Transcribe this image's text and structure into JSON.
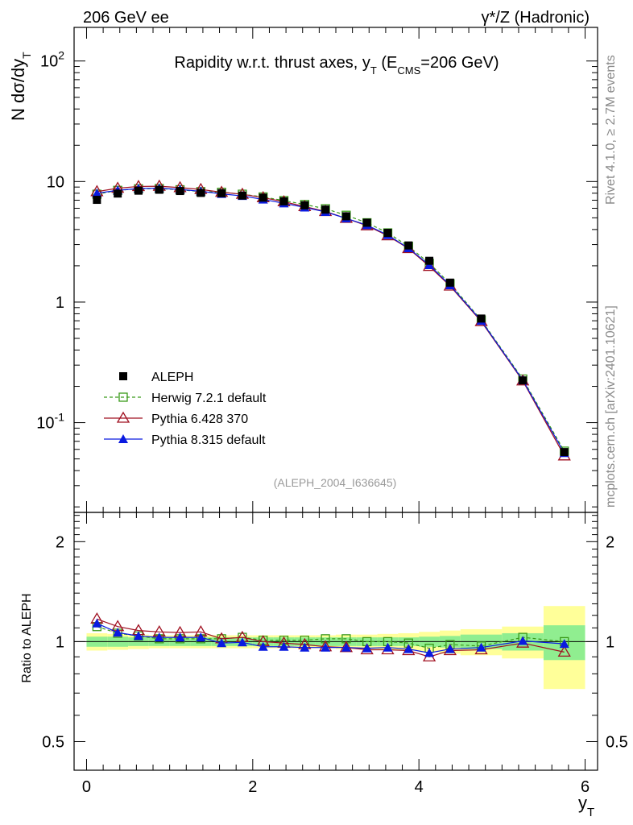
{
  "header": {
    "left_label": "206 GeV ee",
    "right_label": "γ*/Z (Hadronic)",
    "side_rivet": "Rivet 4.1.0, ≥ 2.7M events",
    "side_mcplots": "mcplots.cern.ch [arXiv:2401.10621]",
    "analysis_id": "(ALEPH_2004_I636645)"
  },
  "chart_data": [
    {
      "type": "line",
      "panel": "main",
      "yscale": "log",
      "title": "Rapidity w.r.t. thrust axes, y_T (E_CMS=206 GeV)",
      "ylabel": "N  dσ/dy_T",
      "xlim": [
        -0.15,
        6.15
      ],
      "ylim": [
        0.018,
        190
      ],
      "yticks": [
        {
          "v": 0.1,
          "label": "10^-1"
        },
        {
          "v": 1,
          "label": "1"
        },
        {
          "v": 10,
          "label": "10"
        },
        {
          "v": 100,
          "label": "10^2"
        }
      ],
      "x": [
        0.125,
        0.375,
        0.625,
        0.875,
        1.125,
        1.375,
        1.625,
        1.875,
        2.125,
        2.375,
        2.625,
        2.875,
        3.125,
        3.375,
        3.625,
        3.875,
        4.125,
        4.375,
        4.75,
        5.25,
        5.75
      ],
      "series": [
        {
          "name": "ALEPH",
          "style": "data",
          "color": "#000000",
          "values": [
            7.05,
            7.95,
            8.4,
            8.55,
            8.35,
            8.05,
            8.0,
            7.65,
            7.35,
            6.85,
            6.35,
            5.85,
            5.15,
            4.55,
            3.75,
            2.95,
            2.2,
            1.45,
            0.73,
            0.224,
            0.057
          ]
        },
        {
          "name": "Herwig 7.2.1 default",
          "style": "open-square-dashed",
          "color": "#3a9a1a",
          "values": [
            7.85,
            8.45,
            8.7,
            8.75,
            8.55,
            8.25,
            8.15,
            7.85,
            7.45,
            6.95,
            6.45,
            5.95,
            5.25,
            4.55,
            3.75,
            2.9,
            2.1,
            1.42,
            0.71,
            0.23,
            0.058
          ]
        },
        {
          "name": "Pythia 6.428 370",
          "style": "open-triangle",
          "color": "#a01020",
          "values": [
            8.25,
            8.8,
            9.1,
            9.15,
            8.9,
            8.6,
            8.15,
            7.85,
            7.35,
            6.8,
            6.2,
            5.65,
            4.95,
            4.3,
            3.55,
            2.78,
            1.98,
            1.36,
            0.69,
            0.222,
            0.053
          ]
        },
        {
          "name": "Pythia 8.315 default",
          "style": "filled-triangle",
          "color": "#0a1ae0",
          "values": [
            8.0,
            8.45,
            8.75,
            8.8,
            8.6,
            8.3,
            7.9,
            7.6,
            7.1,
            6.6,
            6.1,
            5.6,
            4.95,
            4.35,
            3.6,
            2.8,
            2.03,
            1.38,
            0.7,
            0.225,
            0.056
          ]
        }
      ]
    },
    {
      "type": "line",
      "panel": "ratio",
      "yscale": "log",
      "ylabel": "Ratio to ALEPH",
      "xlabel": "y_T",
      "xlim": [
        -0.15,
        6.15
      ],
      "ylim": [
        0.41,
        2.45
      ],
      "xticks": [
        0,
        2,
        4,
        6
      ],
      "yticks": [
        {
          "v": 0.5,
          "label": "0.5"
        },
        {
          "v": 1,
          "label": "1"
        },
        {
          "v": 2,
          "label": "2"
        }
      ],
      "bands": {
        "edges": [
          0.0,
          0.25,
          0.5,
          0.75,
          1.0,
          1.25,
          1.5,
          1.75,
          2.0,
          2.25,
          2.5,
          2.75,
          3.0,
          3.25,
          3.5,
          3.75,
          4.0,
          4.25,
          4.5,
          5.0,
          5.5,
          6.0
        ],
        "inner_half_width": [
          0.035,
          0.035,
          0.03,
          0.03,
          0.03,
          0.03,
          0.03,
          0.03,
          0.03,
          0.03,
          0.03,
          0.03,
          0.03,
          0.03,
          0.03,
          0.03,
          0.035,
          0.04,
          0.05,
          0.06,
          0.12
        ],
        "outer_half_width": [
          0.06,
          0.055,
          0.05,
          0.045,
          0.045,
          0.045,
          0.045,
          0.045,
          0.045,
          0.045,
          0.045,
          0.045,
          0.05,
          0.05,
          0.055,
          0.06,
          0.07,
          0.08,
          0.09,
          0.11,
          0.28
        ],
        "inner_color": "#90ee90",
        "outer_color": "#ffff99"
      },
      "x": [
        0.125,
        0.375,
        0.625,
        0.875,
        1.125,
        1.375,
        1.625,
        1.875,
        2.125,
        2.375,
        2.625,
        2.875,
        3.125,
        3.375,
        3.625,
        3.875,
        4.125,
        4.375,
        4.75,
        5.25,
        5.75
      ],
      "series": [
        {
          "name": "Herwig 7.2.1 default",
          "style": "open-square-dashed",
          "color": "#3a9a1a",
          "values": [
            1.11,
            1.06,
            1.04,
            1.02,
            1.02,
            1.02,
            1.02,
            1.03,
            1.01,
            1.01,
            1.01,
            1.02,
            1.02,
            1.0,
            1.0,
            0.99,
            0.955,
            0.98,
            0.97,
            1.03,
            1.0
          ]
        },
        {
          "name": "Pythia 6.428 370",
          "style": "open-triangle",
          "color": "#a01020",
          "values": [
            1.17,
            1.11,
            1.08,
            1.07,
            1.065,
            1.07,
            1.02,
            1.03,
            1.0,
            0.99,
            0.98,
            0.965,
            0.96,
            0.945,
            0.945,
            0.94,
            0.9,
            0.94,
            0.945,
            0.99,
            0.93
          ]
        },
        {
          "name": "Pythia 8.315 default",
          "style": "filled-triangle",
          "color": "#0a1ae0",
          "values": [
            1.135,
            1.065,
            1.04,
            1.03,
            1.03,
            1.03,
            0.99,
            0.995,
            0.965,
            0.965,
            0.96,
            0.96,
            0.96,
            0.955,
            0.96,
            0.95,
            0.925,
            0.95,
            0.96,
            1.005,
            0.985
          ]
        }
      ]
    }
  ]
}
